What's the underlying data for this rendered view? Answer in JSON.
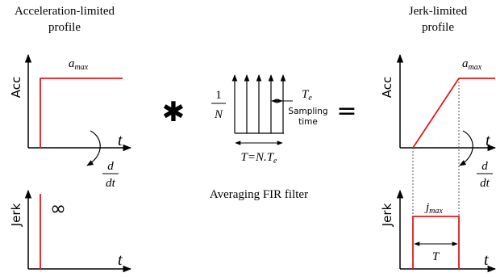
{
  "left": {
    "title_line1": "Acceleration-limited",
    "title_line2": "profile",
    "acc_axis_label": "Acc",
    "amax_label": "a",
    "amax_sub": "max",
    "t_label": "t",
    "jerk_axis_label": "Jerk",
    "infinity_label": "∞",
    "t_label_bottom": "t"
  },
  "derivative": {
    "numerator": "d",
    "denominator": "dt"
  },
  "operators": {
    "convolution": "✱",
    "equals": "="
  },
  "filter": {
    "gain_numerator": "1",
    "gain_denominator": "N",
    "te_label": "T",
    "te_sub": "e",
    "sampling_line1": "Sampling",
    "sampling_line2": "time",
    "period_label": "T=N.T",
    "period_sub": "e",
    "caption": "Averaging FIR filter"
  },
  "right": {
    "title_line1": "Jerk-limited",
    "title_line2": "profile",
    "acc_axis_label": "Acc",
    "amax_label": "a",
    "amax_sub": "max",
    "t_label": "t",
    "jerk_axis_label": "Jerk",
    "jmax_label": "j",
    "jmax_sub": "max",
    "period_label": "T",
    "t_label_bottom": "t"
  },
  "colors": {
    "signal": "#e31a1c",
    "axis": "#000000",
    "guide": "#555555"
  }
}
